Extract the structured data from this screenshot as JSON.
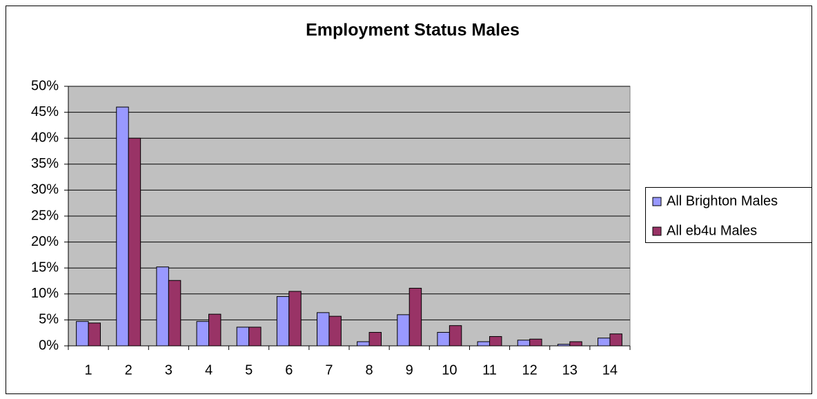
{
  "chart_data": {
    "type": "bar",
    "title": "Employment Status Males",
    "categories": [
      "1",
      "2",
      "3",
      "4",
      "5",
      "6",
      "7",
      "8",
      "9",
      "10",
      "11",
      "12",
      "13",
      "14"
    ],
    "series": [
      {
        "name": "All Brighton Males",
        "color": "#9999ff",
        "values": [
          4.7,
          46,
          15.2,
          4.7,
          3.6,
          9.5,
          6.4,
          0.8,
          6.0,
          2.6,
          0.8,
          1.1,
          0.3,
          1.5
        ]
      },
      {
        "name": "All eb4u Males",
        "color": "#993366",
        "values": [
          4.4,
          40,
          12.6,
          6.1,
          3.6,
          10.5,
          5.7,
          2.6,
          11.1,
          3.9,
          1.8,
          1.3,
          0.8,
          2.3
        ]
      }
    ],
    "ylim": [
      0,
      50
    ],
    "yticks": [
      {
        "value": 0,
        "label": "0%"
      },
      {
        "value": 5,
        "label": "5%"
      },
      {
        "value": 10,
        "label": "10%"
      },
      {
        "value": 15,
        "label": "15%"
      },
      {
        "value": 20,
        "label": "20%"
      },
      {
        "value": 25,
        "label": "25%"
      },
      {
        "value": 30,
        "label": "30%"
      },
      {
        "value": 35,
        "label": "35%"
      },
      {
        "value": 40,
        "label": "40%"
      },
      {
        "value": 45,
        "label": "45%"
      },
      {
        "value": 50,
        "label": "50%"
      }
    ],
    "grid": true,
    "legend": "right",
    "plot_background": "#c0c0c0"
  }
}
